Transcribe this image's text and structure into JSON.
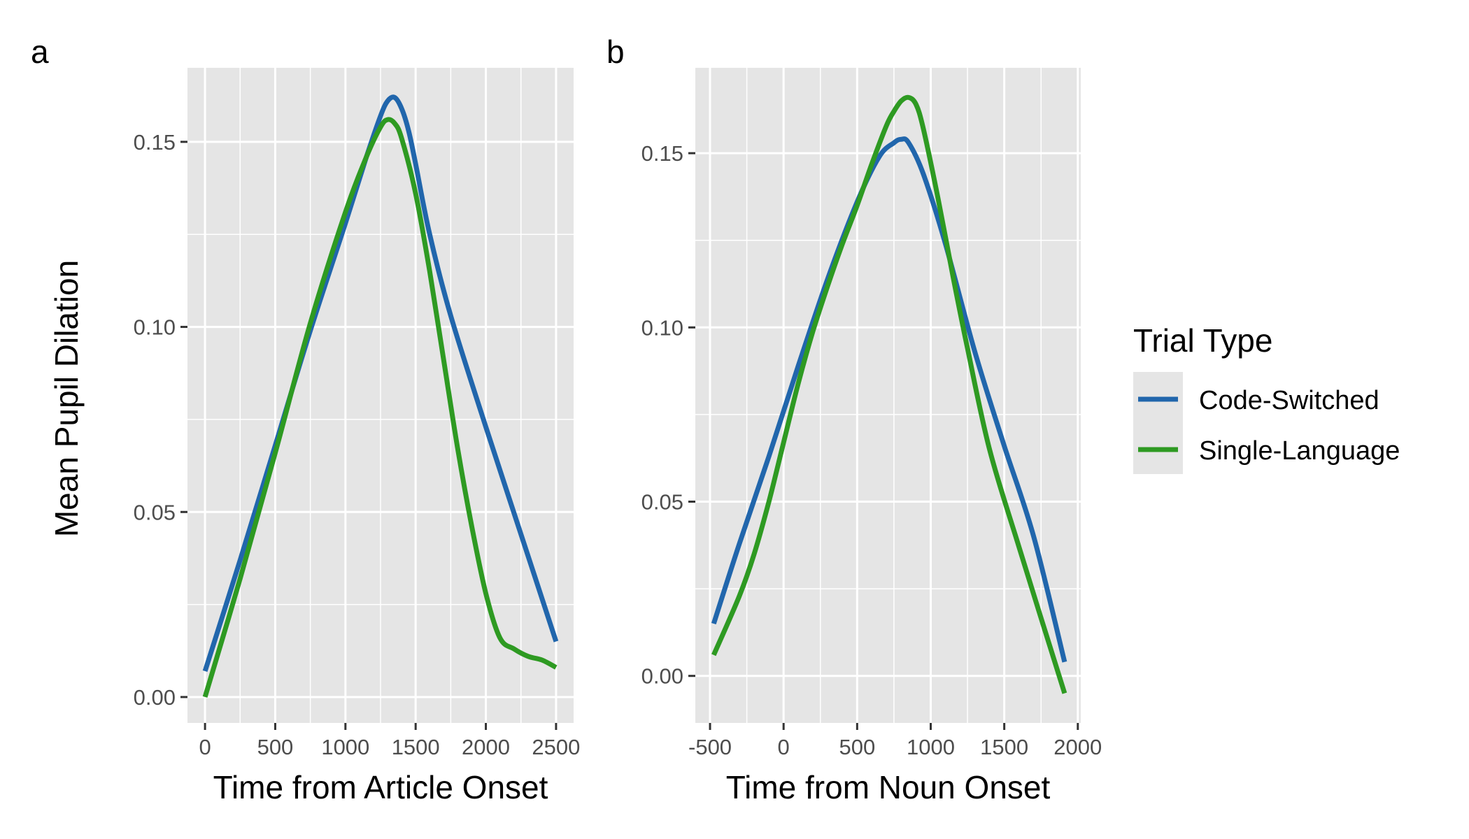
{
  "chart_data": [
    {
      "type": "line",
      "panel_label": "a",
      "xlabel": "Time from Article Onset",
      "ylabel": "Mean Pupil Dilation",
      "xlim": [
        -125,
        2625
      ],
      "ylim": [
        -0.007,
        0.17
      ],
      "xticks": [
        0,
        500,
        1000,
        1500,
        2000,
        2500
      ],
      "xtick_labels": [
        "0",
        "500",
        "1000",
        "1500",
        "2000",
        "2500"
      ],
      "xminor": [
        250,
        750,
        1250,
        1750,
        2250
      ],
      "yticks": [
        0.0,
        0.05,
        0.1,
        0.15
      ],
      "ytick_labels": [
        "0.00",
        "0.05",
        "0.10",
        "0.15"
      ],
      "yminor": [
        0.025,
        0.075,
        0.125
      ],
      "grid": true,
      "series": [
        {
          "name": "Code-Switched",
          "color": "#2166ac",
          "x": [
            0,
            250,
            500,
            750,
            1000,
            1150,
            1250,
            1300,
            1350,
            1400,
            1450,
            1500,
            1600,
            1750,
            2000,
            2250,
            2500
          ],
          "y": [
            0.007,
            0.037,
            0.068,
            0.099,
            0.128,
            0.146,
            0.157,
            0.161,
            0.162,
            0.159,
            0.153,
            0.144,
            0.125,
            0.103,
            0.073,
            0.044,
            0.015
          ]
        },
        {
          "name": "Single-Language",
          "color": "#2e9a22",
          "x": [
            0,
            250,
            500,
            750,
            1000,
            1150,
            1250,
            1300,
            1350,
            1400,
            1500,
            1600,
            1700,
            1800,
            1900,
            2000,
            2100,
            2200,
            2300,
            2400,
            2500
          ],
          "y": [
            0.0,
            0.032,
            0.066,
            0.101,
            0.131,
            0.146,
            0.154,
            0.156,
            0.155,
            0.151,
            0.136,
            0.115,
            0.091,
            0.067,
            0.046,
            0.028,
            0.016,
            0.013,
            0.011,
            0.01,
            0.008
          ]
        }
      ]
    },
    {
      "type": "line",
      "panel_label": "b",
      "xlabel": "Time from Noun Onset",
      "ylabel": "",
      "xlim": [
        -600,
        2020
      ],
      "ylim": [
        -0.0135,
        0.1745
      ],
      "xticks": [
        -500,
        0,
        500,
        1000,
        1500,
        2000
      ],
      "xtick_labels": [
        "-500",
        "0",
        "500",
        "1000",
        "1500",
        "2000"
      ],
      "xminor": [
        -250,
        250,
        750,
        1250,
        1750
      ],
      "yticks": [
        0.0,
        0.05,
        0.1,
        0.15
      ],
      "ytick_labels": [
        "0.00",
        "0.05",
        "0.10",
        "0.15"
      ],
      "yminor": [
        0.025,
        0.075,
        0.125
      ],
      "grid": true,
      "series": [
        {
          "name": "Code-Switched",
          "color": "#2166ac",
          "x": [
            -475,
            -300,
            -100,
            100,
            300,
            500,
            650,
            750,
            800,
            850,
            950,
            1100,
            1300,
            1500,
            1700,
            1910
          ],
          "y": [
            0.015,
            0.038,
            0.063,
            0.089,
            0.114,
            0.136,
            0.149,
            0.153,
            0.154,
            0.153,
            0.144,
            0.124,
            0.093,
            0.066,
            0.04,
            0.004
          ]
        },
        {
          "name": "Single-Language",
          "color": "#2e9a22",
          "x": [
            -475,
            -300,
            -200,
            -100,
            0,
            100,
            200,
            300,
            400,
            500,
            600,
            700,
            750,
            800,
            850,
            900,
            950,
            1050,
            1150,
            1250,
            1400,
            1600,
            1910
          ],
          "y": [
            0.006,
            0.023,
            0.035,
            0.05,
            0.067,
            0.084,
            0.099,
            0.112,
            0.124,
            0.135,
            0.147,
            0.158,
            0.162,
            0.165,
            0.166,
            0.164,
            0.157,
            0.137,
            0.115,
            0.094,
            0.065,
            0.037,
            -0.005
          ]
        }
      ]
    }
  ],
  "legend": {
    "title": "Trial Type",
    "placement": "right",
    "entries": [
      {
        "label": "Code-Switched",
        "color": "#2166ac"
      },
      {
        "label": "Single-Language",
        "color": "#2e9a22"
      }
    ]
  },
  "colors": {
    "panel_background": "#e5e5e5",
    "grid": "#ffffff",
    "tick": "#333333"
  }
}
